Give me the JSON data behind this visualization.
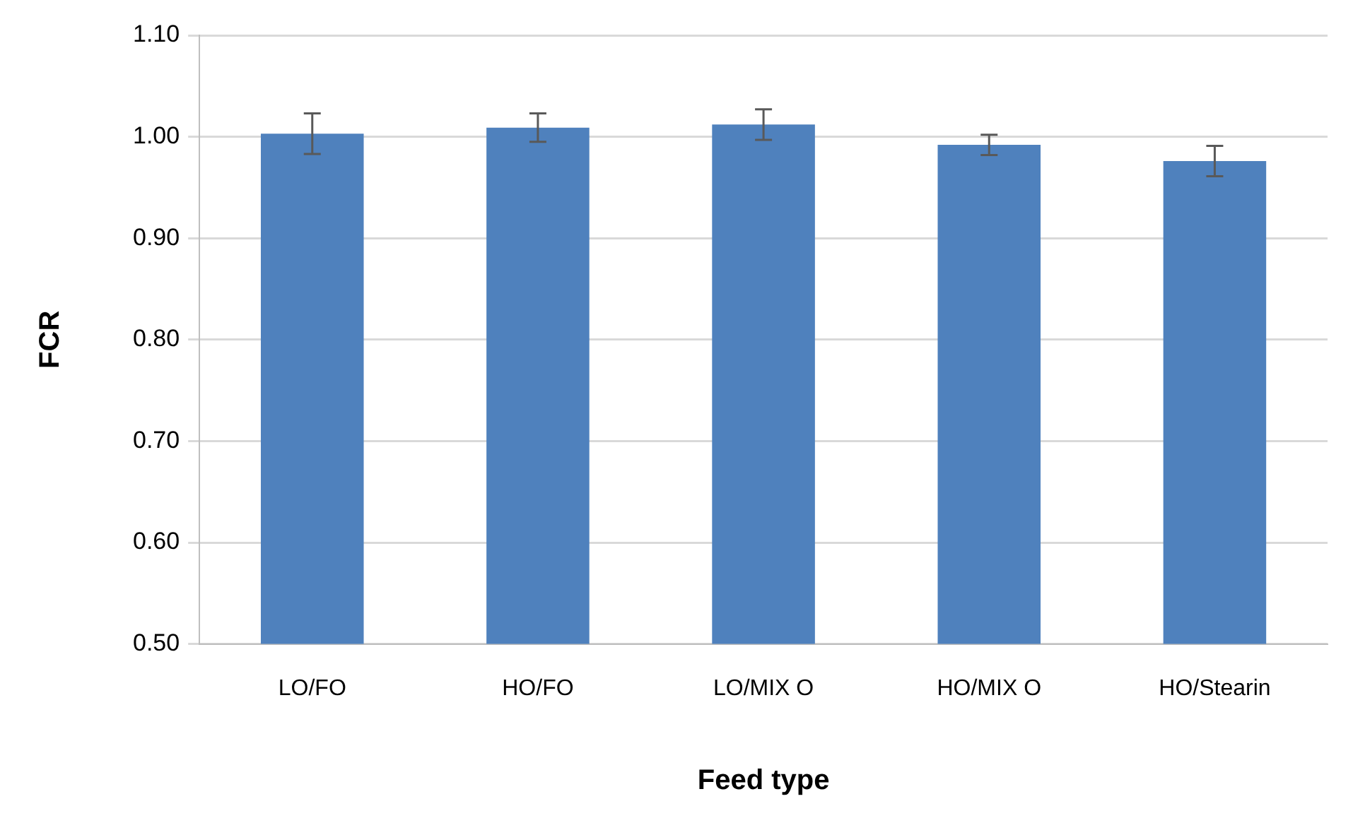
{
  "chart_data": {
    "type": "bar",
    "xlabel": "Feed type",
    "ylabel": "FCR",
    "categories": [
      "LO/FO",
      "HO/FO",
      "LO/MIX O",
      "HO/MIX O",
      "HO/Stearin"
    ],
    "values": [
      1.003,
      1.009,
      1.012,
      0.992,
      0.976
    ],
    "errors": [
      0.02,
      0.014,
      0.015,
      0.01,
      0.015
    ],
    "color": "#4f81bd",
    "ylim": [
      0.5,
      1.1
    ],
    "yticks": [
      {
        "value": 0.5,
        "label": "0.50"
      },
      {
        "value": 0.6,
        "label": "0.60"
      },
      {
        "value": 0.7,
        "label": "0.70"
      },
      {
        "value": 0.8,
        "label": "0.80"
      },
      {
        "value": 0.9,
        "label": "0.90"
      },
      {
        "value": 1.0,
        "label": "1.00"
      },
      {
        "value": 1.1,
        "label": "1.10"
      }
    ],
    "grid": "y",
    "legend": false
  }
}
